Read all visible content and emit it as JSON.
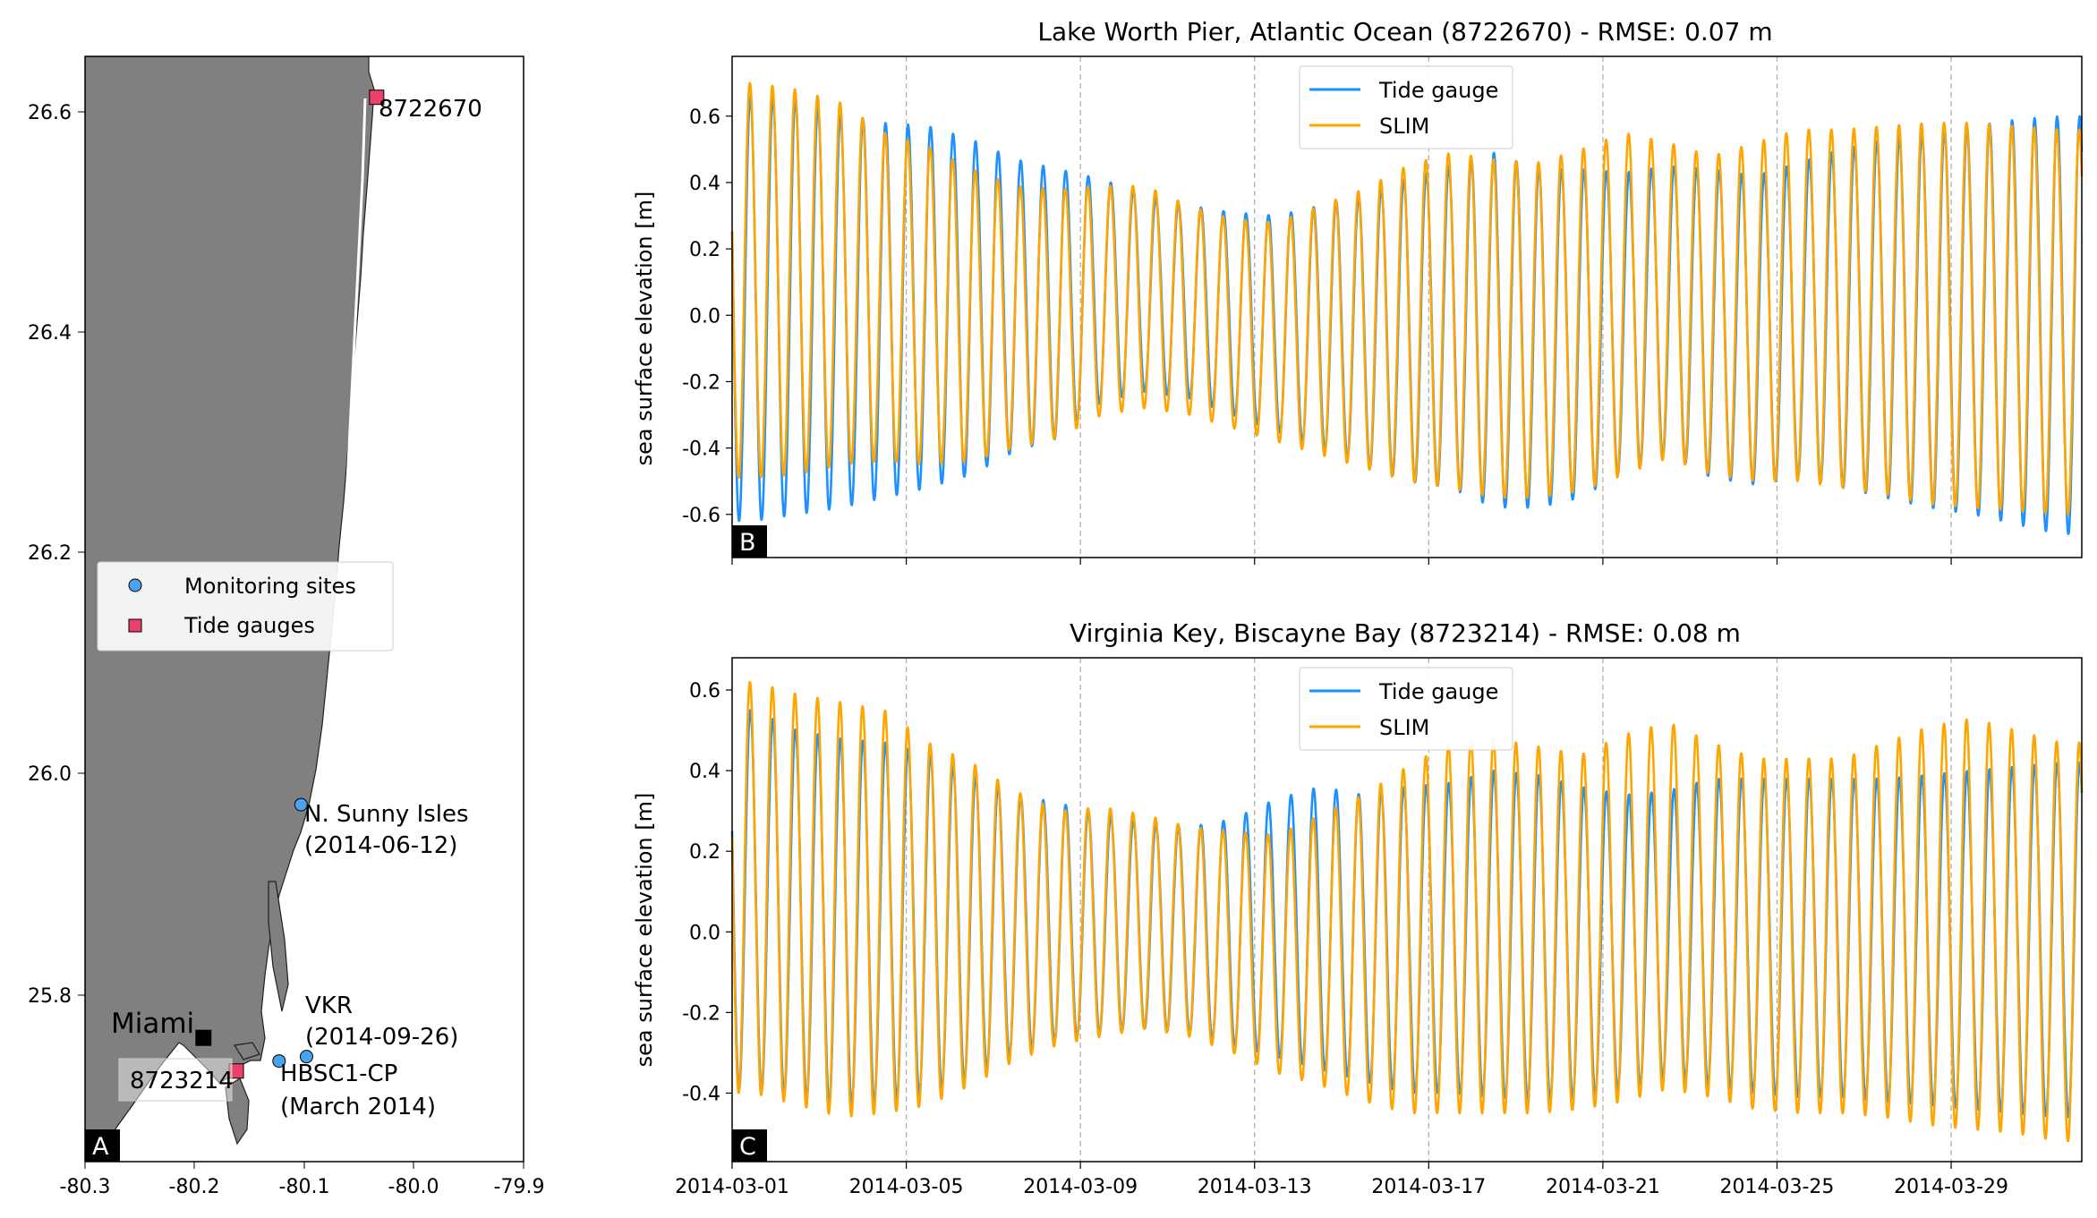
{
  "colors": {
    "tide_gauge": "#1e90ff",
    "slim": "#ffa500",
    "land": "#808080",
    "water": "#ffffff",
    "monitoring_marker": "#4aa3ee",
    "tide_gauge_marker": "#e8416a",
    "grid": "#b0b0b0"
  },
  "map_panel": {
    "letter": "A",
    "x_ticks": [
      "-80.3",
      "-80.2",
      "-80.1",
      "-80.0",
      "-79.9"
    ],
    "y_ticks": [
      "25.8",
      "26.0",
      "26.2",
      "26.4",
      "26.6"
    ],
    "xlim": [
      -80.3,
      -79.9
    ],
    "ylim": [
      25.65,
      26.65
    ],
    "legend": {
      "monitoring": "Monitoring sites",
      "tide_gauges": "Tide gauges"
    },
    "city": {
      "name": "Miami",
      "lon": -80.192,
      "lat": 25.762
    },
    "tide_gauges": [
      {
        "id": "8722670",
        "lon": -80.034,
        "lat": 26.613
      },
      {
        "id": "8723214",
        "lon": -80.162,
        "lat": 25.732
      }
    ],
    "monitoring_sites": [
      {
        "name": "N. Sunny Isles",
        "date": "(2014-06-12)",
        "lon": -80.103,
        "lat": 25.973
      },
      {
        "name": "VKR",
        "date": "(2014-09-26)",
        "lon": -80.098,
        "lat": 25.745
      },
      {
        "name": "HBSC1-CP",
        "date": "(March 2014)",
        "lon": -80.123,
        "lat": 25.741
      }
    ]
  },
  "chart_data": [
    {
      "type": "line",
      "panel": "B",
      "title": "Lake Worth Pier, Atlantic Ocean (8722670) - RMSE: 0.07 m",
      "ylabel": "sea surface elevation [m]",
      "xlabel": "",
      "xlim": [
        "2014-03-01",
        "2014-04-01"
      ],
      "ylim": [
        -0.73,
        0.78
      ],
      "y_ticks": [
        "0.6",
        "0.4",
        "0.2",
        "0.0",
        "-0.2",
        "-0.4",
        "-0.6"
      ],
      "x_grid": [
        "2014-03-05",
        "2014-03-09",
        "2014-03-13",
        "2014-03-17",
        "2014-03-21",
        "2014-03-25",
        "2014-03-29"
      ],
      "legend": {
        "position": "upper center",
        "entries": [
          "Tide gauge",
          "SLIM"
        ]
      },
      "series": [
        {
          "name": "Tide gauge",
          "daily_high": [
            0.66,
            0.65,
            0.6,
            0.58,
            0.57,
            0.53,
            0.47,
            0.44,
            0.41,
            0.36,
            0.33,
            0.31,
            0.3,
            0.33,
            0.36,
            0.41,
            0.45,
            0.49,
            0.44,
            0.44,
            0.43,
            0.45,
            0.44,
            0.42,
            0.46,
            0.5,
            0.53,
            0.55,
            0.57,
            0.59,
            0.6
          ],
          "daily_low": [
            -0.62,
            -0.6,
            -0.58,
            -0.55,
            -0.52,
            -0.48,
            -0.41,
            -0.37,
            -0.26,
            -0.23,
            -0.25,
            -0.3,
            -0.35,
            -0.4,
            -0.45,
            -0.5,
            -0.52,
            -0.58,
            -0.58,
            -0.55,
            -0.47,
            -0.42,
            -0.49,
            -0.51,
            -0.49,
            -0.52,
            -0.55,
            -0.58,
            -0.6,
            -0.63,
            -0.66
          ]
        },
        {
          "name": "SLIM",
          "daily_high": [
            0.7,
            0.68,
            0.64,
            0.55,
            0.51,
            0.44,
            0.39,
            0.38,
            0.39,
            0.39,
            0.33,
            0.29,
            0.28,
            0.33,
            0.38,
            0.45,
            0.49,
            0.47,
            0.46,
            0.5,
            0.55,
            0.52,
            0.48,
            0.52,
            0.56,
            0.56,
            0.57,
            0.58,
            0.58,
            0.57,
            0.56
          ],
          "daily_low": [
            -0.49,
            -0.48,
            -0.45,
            -0.44,
            -0.45,
            -0.44,
            -0.4,
            -0.37,
            -0.3,
            -0.28,
            -0.3,
            -0.34,
            -0.38,
            -0.42,
            -0.46,
            -0.5,
            -0.52,
            -0.55,
            -0.55,
            -0.53,
            -0.48,
            -0.43,
            -0.48,
            -0.5,
            -0.5,
            -0.52,
            -0.54,
            -0.57,
            -0.58,
            -0.59,
            -0.6
          ]
        }
      ]
    },
    {
      "type": "line",
      "panel": "C",
      "title": "Virginia Key, Biscayne Bay (8723214) - RMSE: 0.08 m",
      "ylabel": "sea surface elevation [m]",
      "xlabel": "",
      "xlim": [
        "2014-03-01",
        "2014-04-01"
      ],
      "ylim": [
        -0.57,
        0.68
      ],
      "y_ticks": [
        "0.6",
        "0.4",
        "0.2",
        "0.0",
        "-0.2",
        "-0.4"
      ],
      "x_ticks": [
        "2014-03-01",
        "2014-03-05",
        "2014-03-09",
        "2014-03-13",
        "2014-03-17",
        "2014-03-21",
        "2014-03-25",
        "2014-03-29"
      ],
      "x_grid": [
        "2014-03-05",
        "2014-03-09",
        "2014-03-13",
        "2014-03-17",
        "2014-03-21",
        "2014-03-25",
        "2014-03-29"
      ],
      "legend": {
        "position": "upper center",
        "entries": [
          "Tide gauge",
          "SLIM"
        ]
      },
      "series": [
        {
          "name": "Tide gauge",
          "daily_high": [
            0.55,
            0.5,
            0.48,
            0.47,
            0.44,
            0.39,
            0.34,
            0.32,
            0.29,
            0.27,
            0.26,
            0.28,
            0.33,
            0.36,
            0.34,
            0.36,
            0.37,
            0.4,
            0.39,
            0.36,
            0.34,
            0.35,
            0.38,
            0.38,
            0.38,
            0.38,
            0.38,
            0.39,
            0.4,
            0.41,
            0.42
          ],
          "daily_low": [
            -0.39,
            -0.41,
            -0.43,
            -0.42,
            -0.4,
            -0.36,
            -0.3,
            -0.27,
            -0.25,
            -0.24,
            -0.25,
            -0.28,
            -0.31,
            -0.34,
            -0.37,
            -0.4,
            -0.4,
            -0.41,
            -0.42,
            -0.41,
            -0.39,
            -0.36,
            -0.38,
            -0.4,
            -0.41,
            -0.41,
            -0.42,
            -0.43,
            -0.44,
            -0.45,
            -0.46
          ]
        },
        {
          "name": "SLIM",
          "daily_high": [
            0.62,
            0.59,
            0.57,
            0.55,
            0.47,
            0.42,
            0.35,
            0.3,
            0.31,
            0.29,
            0.26,
            0.25,
            0.24,
            0.29,
            0.34,
            0.41,
            0.47,
            0.48,
            0.46,
            0.44,
            0.49,
            0.52,
            0.47,
            0.43,
            0.43,
            0.43,
            0.47,
            0.51,
            0.53,
            0.5,
            0.47
          ],
          "daily_low": [
            -0.4,
            -0.43,
            -0.46,
            -0.45,
            -0.43,
            -0.38,
            -0.32,
            -0.28,
            -0.26,
            -0.24,
            -0.26,
            -0.3,
            -0.35,
            -0.38,
            -0.42,
            -0.45,
            -0.45,
            -0.45,
            -0.45,
            -0.44,
            -0.42,
            -0.39,
            -0.41,
            -0.44,
            -0.45,
            -0.45,
            -0.46,
            -0.48,
            -0.49,
            -0.5,
            -0.52
          ]
        }
      ]
    }
  ]
}
